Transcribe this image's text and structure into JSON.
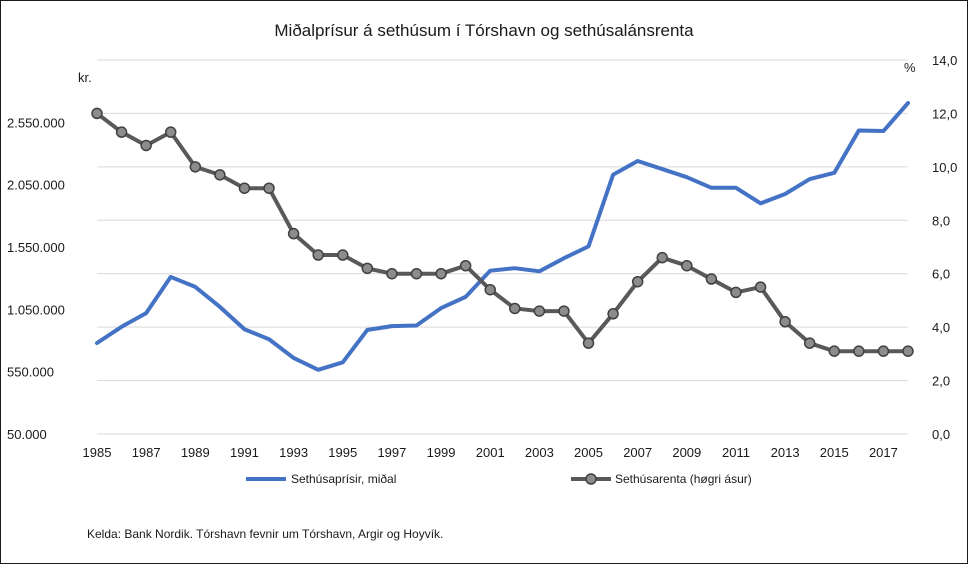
{
  "chart_data": {
    "type": "line",
    "title": "Miðalprísur á sethúsum í Tórshavn og sethúsalánsrenta",
    "y_left_unit": "kr.",
    "y_right_unit": "%",
    "source_note": "Kelda: Bank Nordik. Tórshavn fevnir um Tórshavn, Argir og Hoyvík.",
    "x": [
      1985,
      1986,
      1987,
      1988,
      1989,
      1990,
      1991,
      1992,
      1993,
      1994,
      1995,
      1996,
      1997,
      1998,
      1999,
      2000,
      2001,
      2002,
      2003,
      2004,
      2005,
      2006,
      2007,
      2008,
      2009,
      2010,
      2011,
      2012,
      2013,
      2014,
      2015,
      2016,
      2017,
      2018
    ],
    "x_tick_labels": [
      "1985",
      "1987",
      "1989",
      "1991",
      "1993",
      "1995",
      "1997",
      "1999",
      "2001",
      "2003",
      "2005",
      "2007",
      "2009",
      "2011",
      "2013",
      "2015",
      "2017"
    ],
    "y_left_ticks": [
      "50.000",
      "550.000",
      "1.050.000",
      "1.550.000",
      "2.050.000",
      "2.550.000"
    ],
    "y_left_range": [
      50000,
      3050000
    ],
    "y_right_ticks": [
      "0,0",
      "2,0",
      "4,0",
      "6,0",
      "8,0",
      "10,0",
      "12,0",
      "14,0"
    ],
    "y_right_range": [
      0,
      14
    ],
    "grid": true,
    "legend_position": "bottom",
    "series": [
      {
        "name": "Sethúsaprísir, miðal",
        "axis": "left",
        "color": "#4472c4",
        "marker": false,
        "values": [
          780000,
          910000,
          1020000,
          1310000,
          1230000,
          1070000,
          890000,
          810000,
          660000,
          565000,
          625000,
          885000,
          915000,
          920000,
          1060000,
          1150000,
          1360000,
          1380000,
          1355000,
          1460000,
          1555000,
          2130000,
          2240000,
          2175000,
          2110000,
          2025000,
          2025000,
          1900000,
          1975000,
          2095000,
          2145000,
          2485000,
          2480000,
          2705000
        ]
      },
      {
        "name": "Sethúsarenta (høgri ásur)",
        "axis": "right",
        "color": "#595959",
        "marker": true,
        "values": [
          12.0,
          11.3,
          10.8,
          11.3,
          10.0,
          9.7,
          9.2,
          9.2,
          7.5,
          6.7,
          6.7,
          6.2,
          6.0,
          6.0,
          6.0,
          6.3,
          5.4,
          4.7,
          4.6,
          4.6,
          3.4,
          4.5,
          5.7,
          6.6,
          6.3,
          5.8,
          5.3,
          5.5,
          4.2,
          3.4,
          3.1,
          3.1,
          3.1,
          3.1
        ]
      }
    ]
  }
}
